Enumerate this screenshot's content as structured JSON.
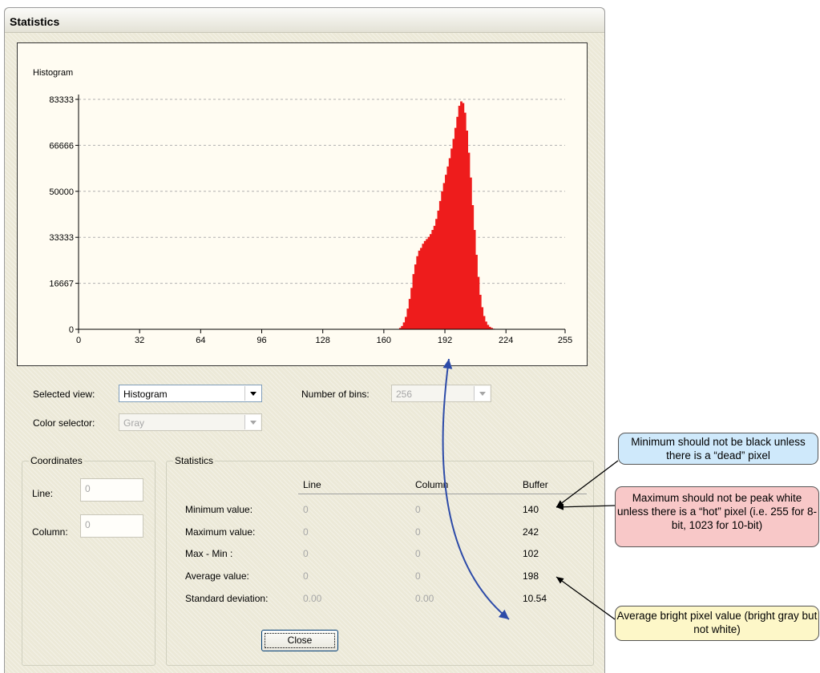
{
  "window": {
    "title": "Statistics"
  },
  "chart_data": {
    "type": "bar",
    "title": "Histogram",
    "x_ticks": [
      0,
      32,
      64,
      96,
      128,
      160,
      192,
      224,
      255
    ],
    "y_ticks": [
      0,
      16667,
      33333,
      50000,
      66666,
      83333
    ],
    "xlim": [
      0,
      255
    ],
    "ylim": [
      0,
      83333
    ],
    "grid": "horizontal dashed",
    "bar_color": "#ee1c1c",
    "bins_x": [
      168,
      169,
      170,
      171,
      172,
      173,
      174,
      175,
      176,
      177,
      178,
      179,
      180,
      181,
      182,
      183,
      184,
      185,
      186,
      187,
      188,
      189,
      190,
      191,
      192,
      193,
      194,
      195,
      196,
      197,
      198,
      199,
      200,
      201,
      202,
      203,
      204,
      205,
      206,
      207,
      208,
      209,
      210,
      211,
      212,
      213,
      214,
      215,
      216,
      217,
      218,
      219,
      220,
      221,
      222
    ],
    "counts": [
      500,
      1200,
      2500,
      4500,
      7500,
      11000,
      15000,
      20000,
      23500,
      26500,
      28500,
      29500,
      31000,
      32000,
      32700,
      33500,
      34500,
      36000,
      37500,
      40000,
      43000,
      46500,
      50000,
      53000,
      56000,
      59000,
      62000,
      65500,
      69000,
      73000,
      77000,
      81000,
      82600,
      82000,
      78500,
      72000,
      64000,
      55000,
      45000,
      36000,
      27000,
      19000,
      12500,
      8000,
      4800,
      2800,
      1600,
      900,
      500,
      200,
      80,
      30,
      10,
      5,
      0
    ]
  },
  "controls": {
    "selected_view_label": "Selected view:",
    "selected_view_value": "Histogram",
    "number_of_bins_label": "Number of bins:",
    "number_of_bins_value": "256",
    "color_selector_label": "Color selector:",
    "color_selector_value": "Gray"
  },
  "coordinates": {
    "title": "Coordinates",
    "line_label": "Line:",
    "line_value": "0",
    "column_label": "Column:",
    "column_value": "0"
  },
  "statistics": {
    "title": "Statistics",
    "headers": [
      "Line",
      "Column",
      "Buffer"
    ],
    "rows": [
      {
        "label": "Minimum value:",
        "line": "0",
        "column": "0",
        "buffer": "140"
      },
      {
        "label": "Maximum value:",
        "line": "0",
        "column": "0",
        "buffer": "242"
      },
      {
        "label": "Max - Min :",
        "line": "0",
        "column": "0",
        "buffer": "102"
      },
      {
        "label": "Average value:",
        "line": "0",
        "column": "0",
        "buffer": "198"
      },
      {
        "label": "Standard deviation:",
        "line": "0.00",
        "column": "0.00",
        "buffer": "10.54"
      }
    ]
  },
  "close_label": "Close",
  "callouts": {
    "min_note": "Minimum should not be black unless there is a “dead” pixel",
    "max_note": "Maximum should not be peak white unless there is a “hot” pixel  (i.e. 255 for 8-bit, 1023 for 10-bit)",
    "avg_note": "Average bright pixel value (bright gray but not white)",
    "min_color": "#cfe9fb",
    "max_color": "#f8c8c8",
    "avg_color": "#fdf7c8"
  }
}
